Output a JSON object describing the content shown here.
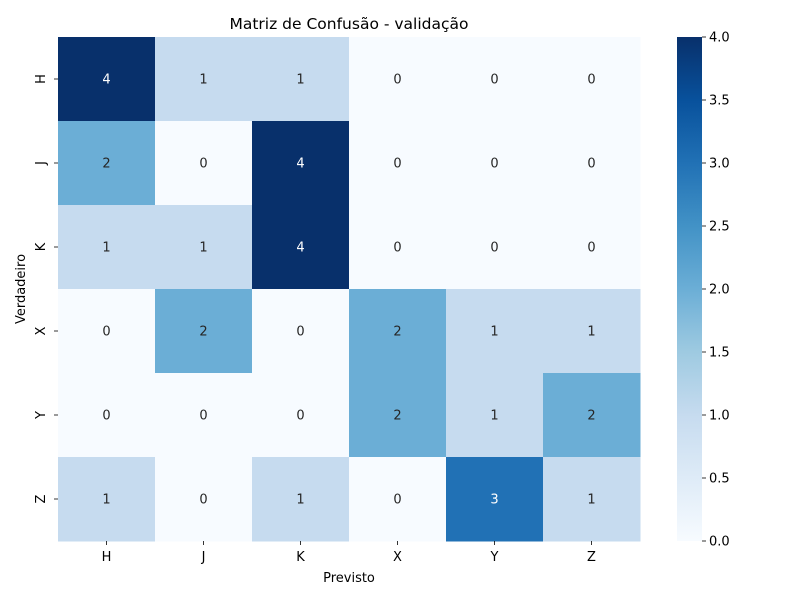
{
  "chart_data": {
    "type": "heatmap",
    "title": "Matriz de Confusão - validação",
    "xlabel": "Previsto",
    "ylabel": "Verdadeiro",
    "x_categories": [
      "H",
      "J",
      "K",
      "X",
      "Y",
      "Z"
    ],
    "y_categories": [
      "H",
      "J",
      "K",
      "X",
      "Y",
      "Z"
    ],
    "values": [
      [
        4,
        1,
        1,
        0,
        0,
        0
      ],
      [
        2,
        0,
        4,
        0,
        0,
        0
      ],
      [
        1,
        1,
        4,
        0,
        0,
        0
      ],
      [
        0,
        2,
        0,
        2,
        1,
        1
      ],
      [
        0,
        0,
        0,
        2,
        1,
        2
      ],
      [
        1,
        0,
        1,
        0,
        3,
        1
      ]
    ],
    "colorbar": {
      "min": 0,
      "max": 4,
      "ticks": [
        "0.0",
        "0.5",
        "1.0",
        "1.5",
        "2.0",
        "2.5",
        "3.0",
        "3.5",
        "4.0"
      ],
      "colormap": "Blues"
    },
    "grid": false,
    "legend": "colorbar-right"
  }
}
